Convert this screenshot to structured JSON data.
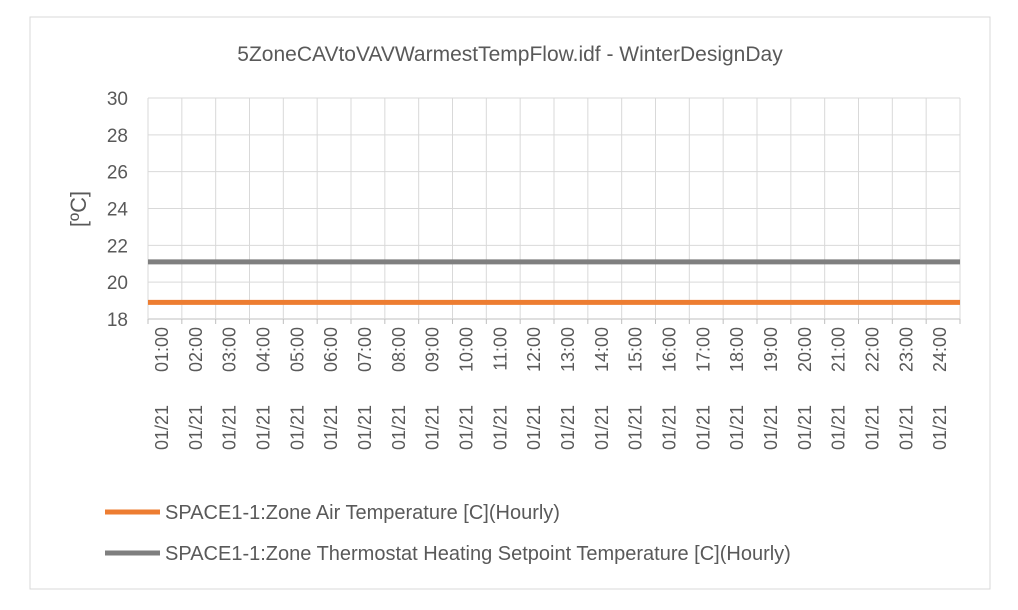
{
  "chart_data": {
    "type": "line",
    "title": "5ZoneCAVtoVAVWarmestTempFlow.idf - WinterDesignDay",
    "ylabel": "[ºC]",
    "xlabel": "",
    "ylim": [
      18,
      30
    ],
    "yticks": [
      18,
      20,
      22,
      24,
      26,
      28,
      30
    ],
    "grid": true,
    "legend_position": "bottom",
    "categories": [
      "01/21 01:00",
      "01/21 02:00",
      "01/21 03:00",
      "01/21 04:00",
      "01/21 05:00",
      "01/21 06:00",
      "01/21 07:00",
      "01/21 08:00",
      "01/21 09:00",
      "01/21 10:00",
      "01/21 11:00",
      "01/21 12:00",
      "01/21 13:00",
      "01/21 14:00",
      "01/21 15:00",
      "01/21 16:00",
      "01/21 17:00",
      "01/21 18:00",
      "01/21 19:00",
      "01/21 20:00",
      "01/21 21:00",
      "01/21 22:00",
      "01/21 23:00",
      "01/21 24:00"
    ],
    "series": [
      {
        "name": "SPACE1-1:Zone Air Temperature [C](Hourly)",
        "color": "#ED7D31",
        "values": [
          18.9,
          18.9,
          18.9,
          18.9,
          18.9,
          18.9,
          18.9,
          18.9,
          18.9,
          18.9,
          18.9,
          18.9,
          18.9,
          18.9,
          18.9,
          18.9,
          18.9,
          18.9,
          18.9,
          18.9,
          18.9,
          18.9,
          18.9,
          18.9
        ]
      },
      {
        "name": "SPACE1-1:Zone Thermostat Heating Setpoint Temperature [C](Hourly)",
        "color": "#7F7F7F",
        "values": [
          21.1,
          21.1,
          21.1,
          21.1,
          21.1,
          21.1,
          21.1,
          21.1,
          21.1,
          21.1,
          21.1,
          21.1,
          21.1,
          21.1,
          21.1,
          21.1,
          21.1,
          21.1,
          21.1,
          21.1,
          21.1,
          21.1,
          21.1,
          21.1
        ]
      }
    ]
  }
}
